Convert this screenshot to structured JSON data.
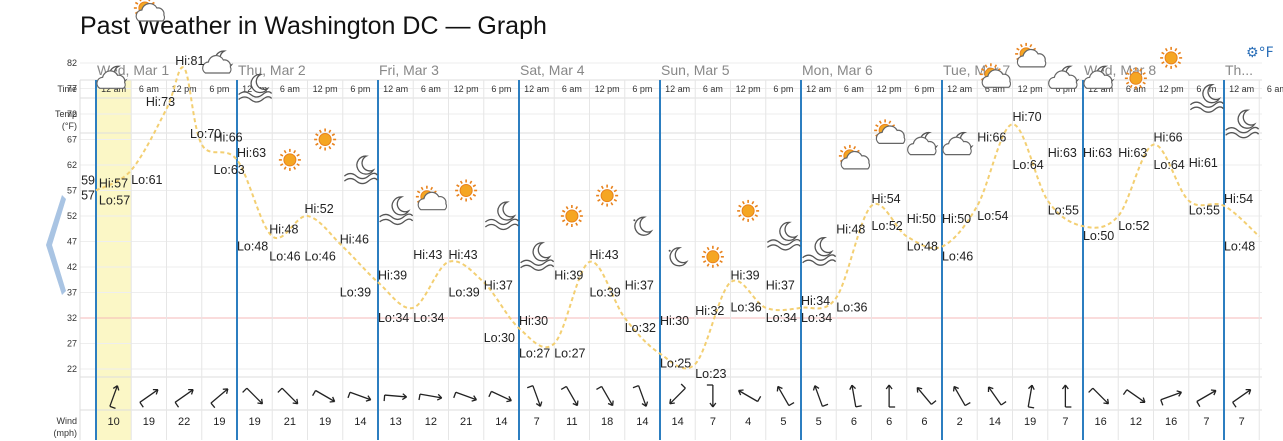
{
  "page": {
    "title": "Past Weather in Washington DC — Graph",
    "unit_toggle": "°F"
  },
  "icons": {
    "settings": "gear-icon",
    "prev": "chevron-left-icon"
  },
  "row_labels": {
    "time": "Time",
    "temp": [
      "Temp",
      "(°F)"
    ],
    "wind": [
      "Wind",
      "(mph)"
    ]
  },
  "chart_data": {
    "type": "line",
    "days": [
      "Wed, Mar 1",
      "Thu, Mar 2",
      "Fri, Mar 3",
      "Sat, Mar 4",
      "Sun, Mar 5",
      "Mon, Mar 6",
      "Tue, Mar 7",
      "Wed, Mar 8",
      "Th..."
    ],
    "time_labels": [
      "12 am",
      "6 am",
      "12 pm",
      "6 pm"
    ],
    "y_ticks": [
      82,
      77,
      72,
      67,
      62,
      57,
      52,
      47,
      42,
      37,
      32,
      27,
      22
    ],
    "partial_y_labels": [
      "59",
      "57"
    ],
    "freezing_line": 32,
    "hours_visible": [
      0,
      198
    ],
    "temperature": {
      "hours": [
        0,
        6,
        12,
        15,
        18,
        24,
        30,
        36,
        42,
        48,
        54,
        60,
        66,
        72,
        78,
        84,
        90,
        96,
        102,
        108,
        114,
        120,
        126,
        132,
        138,
        144,
        150,
        156,
        162,
        168,
        174,
        180,
        186,
        192,
        198
      ],
      "values": [
        57,
        61,
        73,
        81,
        66,
        63,
        48,
        52,
        46,
        39,
        34,
        43,
        39,
        30,
        27,
        43,
        32,
        25,
        23,
        39,
        34,
        34,
        36,
        54,
        48,
        46,
        54,
        70,
        55,
        50,
        52,
        66,
        55,
        54,
        48
      ]
    },
    "hi_lo_labels": [
      {
        "text": "Hi:57",
        "h": 1.0,
        "t": 57
      },
      {
        "text": "Lo:57",
        "h": 1.0,
        "t": 57
      },
      {
        "text": "Lo:61",
        "h": 6.5,
        "t": 61
      },
      {
        "text": "Hi:73",
        "h": 9.0,
        "t": 73
      },
      {
        "text": "Hi:81",
        "h": 14.0,
        "t": 81
      },
      {
        "text": "Lo:70",
        "h": 16.5,
        "t": 70
      },
      {
        "text": "Hi:66",
        "h": 20.5,
        "t": 66
      },
      {
        "text": "Lo:63",
        "h": 20.5,
        "t": 63
      },
      {
        "text": "Hi:63",
        "h": 24.5,
        "t": 63
      },
      {
        "text": "Lo:48",
        "h": 24.5,
        "t": 48
      },
      {
        "text": "Hi:48",
        "h": 30.0,
        "t": 48
      },
      {
        "text": "Lo:46",
        "h": 30.0,
        "t": 46
      },
      {
        "text": "Hi:52",
        "h": 36.0,
        "t": 52
      },
      {
        "text": "Lo:46",
        "h": 36.0,
        "t": 46
      },
      {
        "text": "Hi:46",
        "h": 42.0,
        "t": 46
      },
      {
        "text": "Lo:39",
        "h": 42.0,
        "t": 39
      },
      {
        "text": "Hi:39",
        "h": 48.5,
        "t": 39
      },
      {
        "text": "Lo:34",
        "h": 48.5,
        "t": 34
      },
      {
        "text": "Hi:43",
        "h": 54.5,
        "t": 43
      },
      {
        "text": "Lo:34",
        "h": 54.5,
        "t": 34
      },
      {
        "text": "Hi:43",
        "h": 60.5,
        "t": 43
      },
      {
        "text": "Lo:39",
        "h": 60.5,
        "t": 39
      },
      {
        "text": "Hi:37",
        "h": 66.5,
        "t": 37
      },
      {
        "text": "Lo:30",
        "h": 66.5,
        "t": 30
      },
      {
        "text": "Hi:30",
        "h": 72.5,
        "t": 30
      },
      {
        "text": "Lo:27",
        "h": 72.5,
        "t": 27
      },
      {
        "text": "Hi:39",
        "h": 78.5,
        "t": 39
      },
      {
        "text": "Lo:27",
        "h": 78.5,
        "t": 27
      },
      {
        "text": "Hi:43",
        "h": 84.5,
        "t": 43
      },
      {
        "text": "Lo:39",
        "h": 84.5,
        "t": 39
      },
      {
        "text": "Hi:37",
        "h": 90.5,
        "t": 37
      },
      {
        "text": "Lo:32",
        "h": 90.5,
        "t": 32
      },
      {
        "text": "Hi:30",
        "h": 96.5,
        "t": 30
      },
      {
        "text": "Lo:25",
        "h": 96.5,
        "t": 25
      },
      {
        "text": "Hi:32",
        "h": 102.5,
        "t": 32
      },
      {
        "text": "Lo:23",
        "h": 102.5,
        "t": 23
      },
      {
        "text": "Hi:39",
        "h": 108.5,
        "t": 39
      },
      {
        "text": "Lo:36",
        "h": 108.5,
        "t": 36
      },
      {
        "text": "Hi:37",
        "h": 114.5,
        "t": 37
      },
      {
        "text": "Lo:34",
        "h": 114.5,
        "t": 34
      },
      {
        "text": "Hi:34",
        "h": 120.5,
        "t": 34
      },
      {
        "text": "Lo:34",
        "h": 120.5,
        "t": 34
      },
      {
        "text": "Hi:48",
        "h": 126.5,
        "t": 48
      },
      {
        "text": "Lo:36",
        "h": 126.5,
        "t": 36
      },
      {
        "text": "Hi:54",
        "h": 132.5,
        "t": 54
      },
      {
        "text": "Lo:52",
        "h": 132.5,
        "t": 52
      },
      {
        "text": "Hi:50",
        "h": 138.5,
        "t": 50
      },
      {
        "text": "Lo:48",
        "h": 138.5,
        "t": 48
      },
      {
        "text": "Hi:50",
        "h": 144.5,
        "t": 50
      },
      {
        "text": "Lo:46",
        "h": 144.5,
        "t": 46
      },
      {
        "text": "Hi:66",
        "h": 150.5,
        "t": 66
      },
      {
        "text": "Lo:54",
        "h": 150.5,
        "t": 54
      },
      {
        "text": "Hi:70",
        "h": 156.5,
        "t": 70
      },
      {
        "text": "Lo:64",
        "h": 156.5,
        "t": 64
      },
      {
        "text": "Hi:63",
        "h": 162.5,
        "t": 63
      },
      {
        "text": "Lo:55",
        "h": 162.5,
        "t": 55
      },
      {
        "text": "Hi:63",
        "h": 168.5,
        "t": 63
      },
      {
        "text": "Lo:50",
        "h": 168.5,
        "t": 50
      },
      {
        "text": "Hi:63",
        "h": 174.5,
        "t": 63
      },
      {
        "text": "Lo:52",
        "h": 174.5,
        "t": 52
      },
      {
        "text": "Hi:66",
        "h": 180.5,
        "t": 66
      },
      {
        "text": "Lo:64",
        "h": 180.5,
        "t": 64
      },
      {
        "text": "Hi:61",
        "h": 186.5,
        "t": 61
      },
      {
        "text": "Lo:55",
        "h": 186.5,
        "t": 55
      },
      {
        "text": "Hi:54",
        "h": 192.5,
        "t": 54
      },
      {
        "text": "Lo:48",
        "h": 192.5,
        "t": 48
      }
    ],
    "weather_icons": [
      {
        "kind": "partly-cloudy-night",
        "h": 0,
        "t": 79
      },
      {
        "kind": "partly-sunny",
        "h": 6,
        "t": 92
      },
      {
        "kind": "partly-sunny",
        "h": 12,
        "t": 98
      },
      {
        "kind": "partly-cloudy-night",
        "h": 18,
        "t": 82
      },
      {
        "kind": "windy-night",
        "h": 24,
        "t": 77
      },
      {
        "kind": "sunny",
        "h": 30,
        "t": 63
      },
      {
        "kind": "sunny",
        "h": 36,
        "t": 67
      },
      {
        "kind": "windy-night",
        "h": 42,
        "t": 61
      },
      {
        "kind": "windy-night",
        "h": 48,
        "t": 53
      },
      {
        "kind": "partly-sunny",
        "h": 54,
        "t": 55
      },
      {
        "kind": "sunny",
        "h": 60,
        "t": 57
      },
      {
        "kind": "windy-night",
        "h": 66,
        "t": 52
      },
      {
        "kind": "windy-night",
        "h": 72,
        "t": 44
      },
      {
        "kind": "sunny",
        "h": 78,
        "t": 52
      },
      {
        "kind": "sunny",
        "h": 84,
        "t": 56
      },
      {
        "kind": "clear-night",
        "h": 90,
        "t": 50
      },
      {
        "kind": "clear-night",
        "h": 96,
        "t": 44
      },
      {
        "kind": "sunny",
        "h": 102,
        "t": 44
      },
      {
        "kind": "sunny",
        "h": 108,
        "t": 53
      },
      {
        "kind": "windy-night",
        "h": 114,
        "t": 48
      },
      {
        "kind": "windy-night",
        "h": 120,
        "t": 45
      },
      {
        "kind": "partly-sunny",
        "h": 126,
        "t": 63
      },
      {
        "kind": "partly-sunny",
        "h": 132,
        "t": 68
      },
      {
        "kind": "partly-cloudy-night",
        "h": 138,
        "t": 66
      },
      {
        "kind": "partly-cloudy-night",
        "h": 144,
        "t": 66
      },
      {
        "kind": "partly-sunny",
        "h": 150,
        "t": 79
      },
      {
        "kind": "partly-sunny",
        "h": 156,
        "t": 83
      },
      {
        "kind": "partly-cloudy-night",
        "h": 162,
        "t": 79
      },
      {
        "kind": "partly-cloudy-night",
        "h": 168,
        "t": 79
      },
      {
        "kind": "sunny",
        "h": 174,
        "t": 79
      },
      {
        "kind": "sunny",
        "h": 180,
        "t": 83
      },
      {
        "kind": "windy-night",
        "h": 186,
        "t": 75
      },
      {
        "kind": "windy-night",
        "h": 192,
        "t": 70
      }
    ],
    "wind": {
      "hours": [
        0,
        6,
        12,
        18,
        24,
        30,
        36,
        42,
        48,
        54,
        60,
        66,
        72,
        78,
        84,
        90,
        96,
        102,
        108,
        114,
        120,
        126,
        132,
        138,
        144,
        150,
        156,
        162,
        168,
        174,
        180,
        186,
        192
      ],
      "speeds": [
        10,
        19,
        22,
        19,
        19,
        21,
        19,
        14,
        13,
        12,
        21,
        14,
        7,
        11,
        18,
        14,
        14,
        7,
        4,
        5,
        5,
        6,
        6,
        6,
        2,
        14,
        19,
        7,
        16,
        12,
        16,
        7,
        7
      ],
      "directions_deg": [
        20,
        55,
        55,
        50,
        135,
        135,
        120,
        110,
        95,
        100,
        110,
        115,
        160,
        150,
        150,
        160,
        225,
        180,
        300,
        330,
        340,
        350,
        0,
        320,
        330,
        325,
        10,
        0,
        135,
        125,
        70,
        60,
        55
      ]
    }
  }
}
